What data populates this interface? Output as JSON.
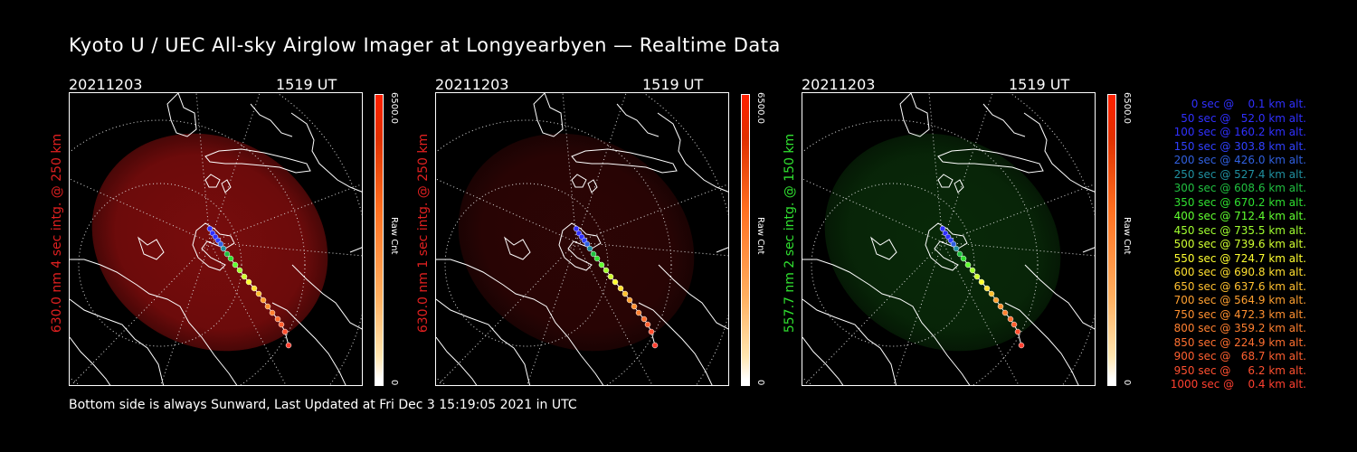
{
  "title": "Kyoto U / UEC All-sky Airglow Imager at Longyearbyen — Realtime Data",
  "footer": "Bottom side is always Sunward, Last Updated at Fri Dec  3 15:19:05 2021 in UTC",
  "panels": [
    {
      "date": "20211203",
      "time": "1519 UT",
      "ylabel": "630.0 nm  4 sec intg. @ 250 km",
      "ylabel_color": "#e02020",
      "cb_top": "6500.0",
      "cb_label": "Raw Cnt",
      "cb_bottom": "0",
      "glow": "#a01010",
      "glow_opacity": 0.75
    },
    {
      "date": "20211203",
      "time": "1519 UT",
      "ylabel": "630.0 nm  1 sec intg. @ 250 km",
      "ylabel_color": "#e02020",
      "cb_top": "6500.0",
      "cb_label": "Raw Cnt",
      "cb_bottom": "0",
      "glow": "#4a0808",
      "glow_opacity": 0.6
    },
    {
      "date": "20211203",
      "time": "1519 UT",
      "ylabel": "557.7 nm  2 sec intg. @ 150 km",
      "ylabel_color": "#30e030",
      "cb_top": "6500.0",
      "cb_label": "Raw Cnt",
      "cb_bottom": "0",
      "glow": "#0c3a0c",
      "glow_opacity": 0.7
    }
  ],
  "legend": [
    {
      "text": "0 sec @    0.1 km alt.",
      "color": "#3030ff"
    },
    {
      "text": "50 sec @   52.0 km alt.",
      "color": "#3030ff"
    },
    {
      "text": "100 sec @ 160.2 km alt.",
      "color": "#3030ff"
    },
    {
      "text": "150 sec @ 303.8 km alt.",
      "color": "#3040ff"
    },
    {
      "text": "200 sec @ 426.0 km alt.",
      "color": "#3060e0"
    },
    {
      "text": "250 sec @ 527.4 km alt.",
      "color": "#2090a0"
    },
    {
      "text": "300 sec @ 608.6 km alt.",
      "color": "#20c040"
    },
    {
      "text": "350 sec @ 670.2 km alt.",
      "color": "#30e030"
    },
    {
      "text": "400 sec @ 712.4 km alt.",
      "color": "#60ff30"
    },
    {
      "text": "450 sec @ 735.5 km alt.",
      "color": "#a0ff30"
    },
    {
      "text": "500 sec @ 739.6 km alt.",
      "color": "#d0ff30"
    },
    {
      "text": "550 sec @ 724.7 km alt.",
      "color": "#ffff30"
    },
    {
      "text": "600 sec @ 690.8 km alt.",
      "color": "#ffe030"
    },
    {
      "text": "650 sec @ 637.6 km alt.",
      "color": "#ffc030"
    },
    {
      "text": "700 sec @ 564.9 km alt.",
      "color": "#ffa030"
    },
    {
      "text": "750 sec @ 472.3 km alt.",
      "color": "#ff9030"
    },
    {
      "text": "800 sec @ 359.2 km alt.",
      "color": "#ff8030"
    },
    {
      "text": "850 sec @ 224.9 km alt.",
      "color": "#ff7030"
    },
    {
      "text": "900 sec @   68.7 km alt.",
      "color": "#ff6030"
    },
    {
      "text": "950 sec @     6.2 km alt.",
      "color": "#ff5030"
    },
    {
      "text": "1000 sec @    0.4 km alt.",
      "color": "#ff4030"
    }
  ]
}
